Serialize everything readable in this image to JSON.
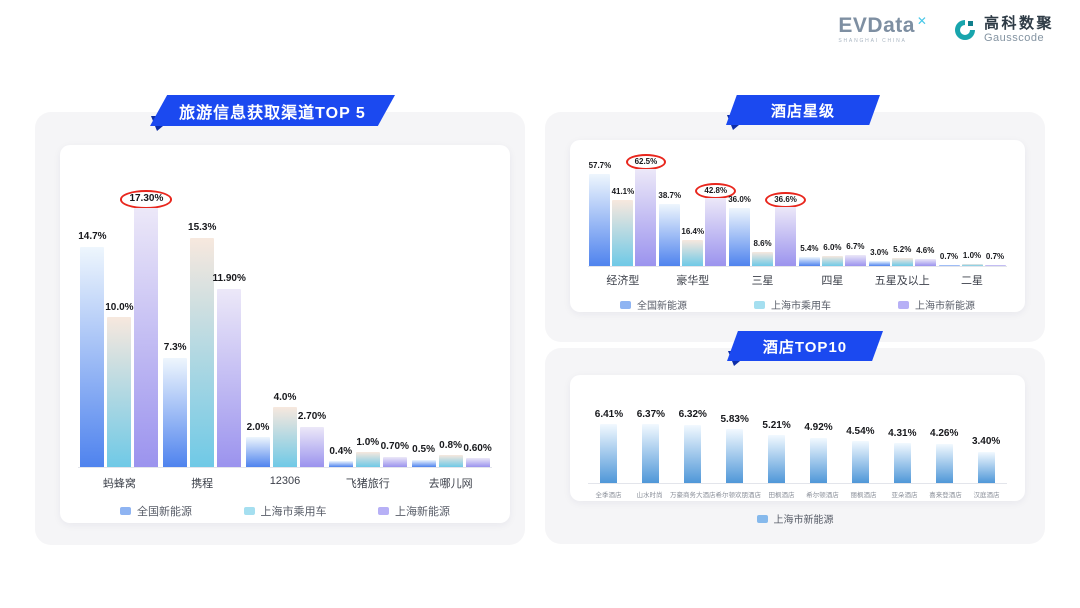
{
  "header": {
    "evdata": {
      "text": "EVData",
      "mark": "✕",
      "subtext": "SHANGHAI CHINA"
    },
    "gausscode": {
      "cn": "高科数聚",
      "en": "Gausscode"
    }
  },
  "colors": {
    "banner_blue": "#1b49f0",
    "banner_fold": "#0d2da8",
    "circle_red": "#e8261d",
    "panel_bg": "#f5f5f7",
    "series_blue": "#4f83ee",
    "series_cyan": "#6fc9e6",
    "series_purple": "#9b93ee",
    "top10_bar_blue": "#4f97d8"
  },
  "chart_data": [
    {
      "type": "bar",
      "title": "旅游信息获取渠道TOP 5",
      "ylim": [
        0,
        20
      ],
      "ymax": 20,
      "yticks": [
        "20%",
        "15%",
        "10%",
        "5%",
        "0%"
      ],
      "grid": false,
      "legend_position": "bottom",
      "categories": [
        "蚂蜂窝",
        "携程",
        "12306",
        "飞猪旅行",
        "去哪儿网"
      ],
      "series": [
        {
          "name": "全国新能源",
          "values": [
            14.7,
            7.3,
            2.0,
            0.4,
            0.5
          ],
          "labels": [
            "14.7%",
            "7.3%",
            "2.0%",
            "0.4%",
            "0.5%"
          ],
          "gradient": [
            "#eef6fd",
            "#4f83ee"
          ],
          "swatch": "#8fb4f2"
        },
        {
          "name": "上海市乘用车",
          "values": [
            10.0,
            15.3,
            4.0,
            1.0,
            0.8
          ],
          "labels": [
            "10.0%",
            "15.3%",
            "4.0%",
            "1.0%",
            "0.8%"
          ],
          "gradient": [
            "#f7e8de",
            "#6fc9e6"
          ],
          "swatch": "#a5dff0"
        },
        {
          "name": "上海新能源",
          "values": [
            17.3,
            11.9,
            2.7,
            0.7,
            0.6
          ],
          "labels": [
            "17.30%",
            "11.90%",
            "2.70%",
            "0.70%",
            "0.60%"
          ],
          "gradient": [
            "#ece8f8",
            "#9b93ee"
          ],
          "swatch": "#b7b0f6"
        }
      ],
      "circled": [
        [
          0,
          2
        ]
      ]
    },
    {
      "type": "bar",
      "title": "酒店星级",
      "ylim": [
        0,
        70
      ],
      "ymax": 70,
      "yticks": [
        "70%",
        "53%",
        "35%",
        "18%",
        "0%"
      ],
      "grid": false,
      "legend_position": "bottom",
      "categories": [
        "经济型",
        "豪华型",
        "三星",
        "四星",
        "五星及以上",
        "二星"
      ],
      "series": [
        {
          "name": "全国新能源",
          "values": [
            57.7,
            38.7,
            36.0,
            5.4,
            3.0,
            0.7
          ],
          "labels": [
            "57.7%",
            "38.7%",
            "36.0%",
            "5.4%",
            "3.0%",
            "0.7%"
          ],
          "gradient": [
            "#eef6fd",
            "#4f83ee"
          ],
          "swatch": "#8fb4f2"
        },
        {
          "name": "上海市乘用车",
          "values": [
            41.1,
            16.4,
            8.6,
            6.0,
            5.2,
            1.0
          ],
          "labels": [
            "41.1%",
            "16.4%",
            "8.6%",
            "6.0%",
            "5.2%",
            "1.0%"
          ],
          "gradient": [
            "#f7e8de",
            "#6fc9e6"
          ],
          "swatch": "#a5dff0"
        },
        {
          "name": "上海市新能源",
          "values": [
            62.5,
            42.8,
            36.6,
            6.7,
            4.6,
            0.7
          ],
          "labels": [
            "62.5%",
            "42.8%",
            "36.6%",
            "6.7%",
            "4.6%",
            "0.7%"
          ],
          "gradient": [
            "#ece8f8",
            "#9b93ee"
          ],
          "swatch": "#b7b0f6"
        }
      ],
      "circled": [
        [
          0,
          2
        ],
        [
          1,
          2
        ],
        [
          2,
          2
        ]
      ]
    },
    {
      "type": "bar",
      "title": "酒店TOP10",
      "ylim": [
        0,
        10
      ],
      "ymax": 10,
      "yticks": [
        "10%",
        "8%",
        "5%",
        "3%",
        "0%"
      ],
      "grid": false,
      "legend_position": "bottom",
      "categories": [
        "全季酒店",
        "山水时尚",
        "万豪商务大酒店",
        "希尔顿欢朋酒店",
        "田枫酒店",
        "希尔顿酒店",
        "丽枫酒店",
        "亚朵酒店",
        "喜来登酒店",
        "汉庭酒店"
      ],
      "series": [
        {
          "name": "上海市新能源",
          "values": [
            6.41,
            6.37,
            6.32,
            5.83,
            5.21,
            4.92,
            4.54,
            4.31,
            4.26,
            3.4
          ],
          "labels": [
            "6.41%",
            "6.37%",
            "6.32%",
            "5.83%",
            "5.21%",
            "4.92%",
            "4.54%",
            "4.31%",
            "4.26%",
            "3.40%"
          ],
          "gradient": [
            "#f2f9ff",
            "#4f97d8"
          ],
          "swatch": "#86b9ec"
        }
      ],
      "circled": []
    }
  ]
}
